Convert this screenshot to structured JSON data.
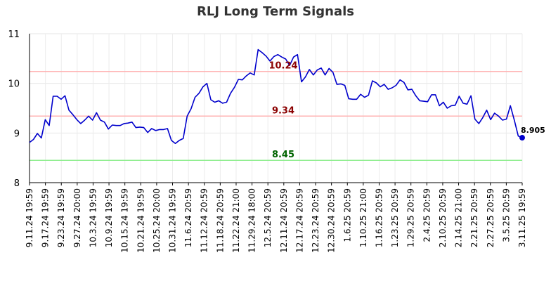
{
  "chart_data": {
    "type": "line",
    "title": "RLJ Long Term Signals",
    "xlabel": "",
    "ylabel": "",
    "ylim": [
      8,
      11
    ],
    "yticks": [
      "8",
      "9",
      "10",
      "11"
    ],
    "grid": true,
    "xtick_labels": [
      "9.11.24 19:59",
      "9.17.24 19:59",
      "9.23.24 19:59",
      "9.27.24 20:00",
      "10.3.24 19:59",
      "10.9.24 19:59",
      "10.15.24 19:59",
      "10.21.24 19:59",
      "10.25.24 20:00",
      "10.31.24 19:59",
      "11.6.24 20:59",
      "11.12.24 20:59",
      "11.18.24 20:59",
      "11.22.24 21:00",
      "11.29.24 18:00",
      "12.5.24 20:59",
      "12.11.24 20:59",
      "12.17.24 20:59",
      "12.23.24 20:59",
      "12.30.24 20:59",
      "1.6.25 20:59",
      "1.10.25 21:00",
      "1.16.25 20:59",
      "1.23.25 20:59",
      "1.29.25 20:59",
      "2.4.25 20:59",
      "2.10.25 20:59",
      "2.14.25 21:00",
      "2.21.25 20:59",
      "2.27.25 20:59",
      "3.5.25 20:59",
      "3.11.25 19:59"
    ],
    "series": [
      {
        "color": "#0000cc",
        "values": [
          8.81,
          8.87,
          8.99,
          8.9,
          9.27,
          9.15,
          9.74,
          9.74,
          9.68,
          9.75,
          9.46,
          9.37,
          9.27,
          9.19,
          9.26,
          9.34,
          9.26,
          9.41,
          9.26,
          9.22,
          9.08,
          9.16,
          9.15,
          9.15,
          9.19,
          9.2,
          9.22,
          9.11,
          9.12,
          9.11,
          9.01,
          9.09,
          9.05,
          9.07,
          9.07,
          9.09,
          8.85,
          8.79,
          8.85,
          8.89,
          9.34,
          9.49,
          9.72,
          9.8,
          9.93,
          10.0,
          9.67,
          9.62,
          9.65,
          9.6,
          9.62,
          9.8,
          9.92,
          10.08,
          10.07,
          10.15,
          10.21,
          10.17,
          10.68,
          10.62,
          10.55,
          10.45,
          10.54,
          10.58,
          10.53,
          10.49,
          10.36,
          10.53,
          10.58,
          10.03,
          10.13,
          10.28,
          10.17,
          10.27,
          10.31,
          10.17,
          10.3,
          10.22,
          9.98,
          9.99,
          9.96,
          9.69,
          9.68,
          9.68,
          9.78,
          9.72,
          9.76,
          10.05,
          10.01,
          9.93,
          9.98,
          9.88,
          9.91,
          9.96,
          10.07,
          10.02,
          9.87,
          9.88,
          9.75,
          9.65,
          9.64,
          9.63,
          9.77,
          9.77,
          9.55,
          9.62,
          9.5,
          9.55,
          9.56,
          9.74,
          9.6,
          9.58,
          9.75,
          9.28,
          9.19,
          9.31,
          9.46,
          9.27,
          9.4,
          9.34,
          9.26,
          9.28,
          9.55,
          9.26,
          8.94,
          8.905
        ]
      }
    ],
    "levels": [
      {
        "label": "10.24",
        "value": 10.24,
        "line_color": "#ffb3b3",
        "text_color": "#8b0000"
      },
      {
        "label": "9.34",
        "value": 9.34,
        "line_color": "#ffb3b3",
        "text_color": "#8b0000"
      },
      {
        "label": "8.45",
        "value": 8.45,
        "line_color": "#90ee90",
        "text_color": "#006400"
      }
    ],
    "last_value": {
      "label": "8.905",
      "value": 8.905
    }
  }
}
